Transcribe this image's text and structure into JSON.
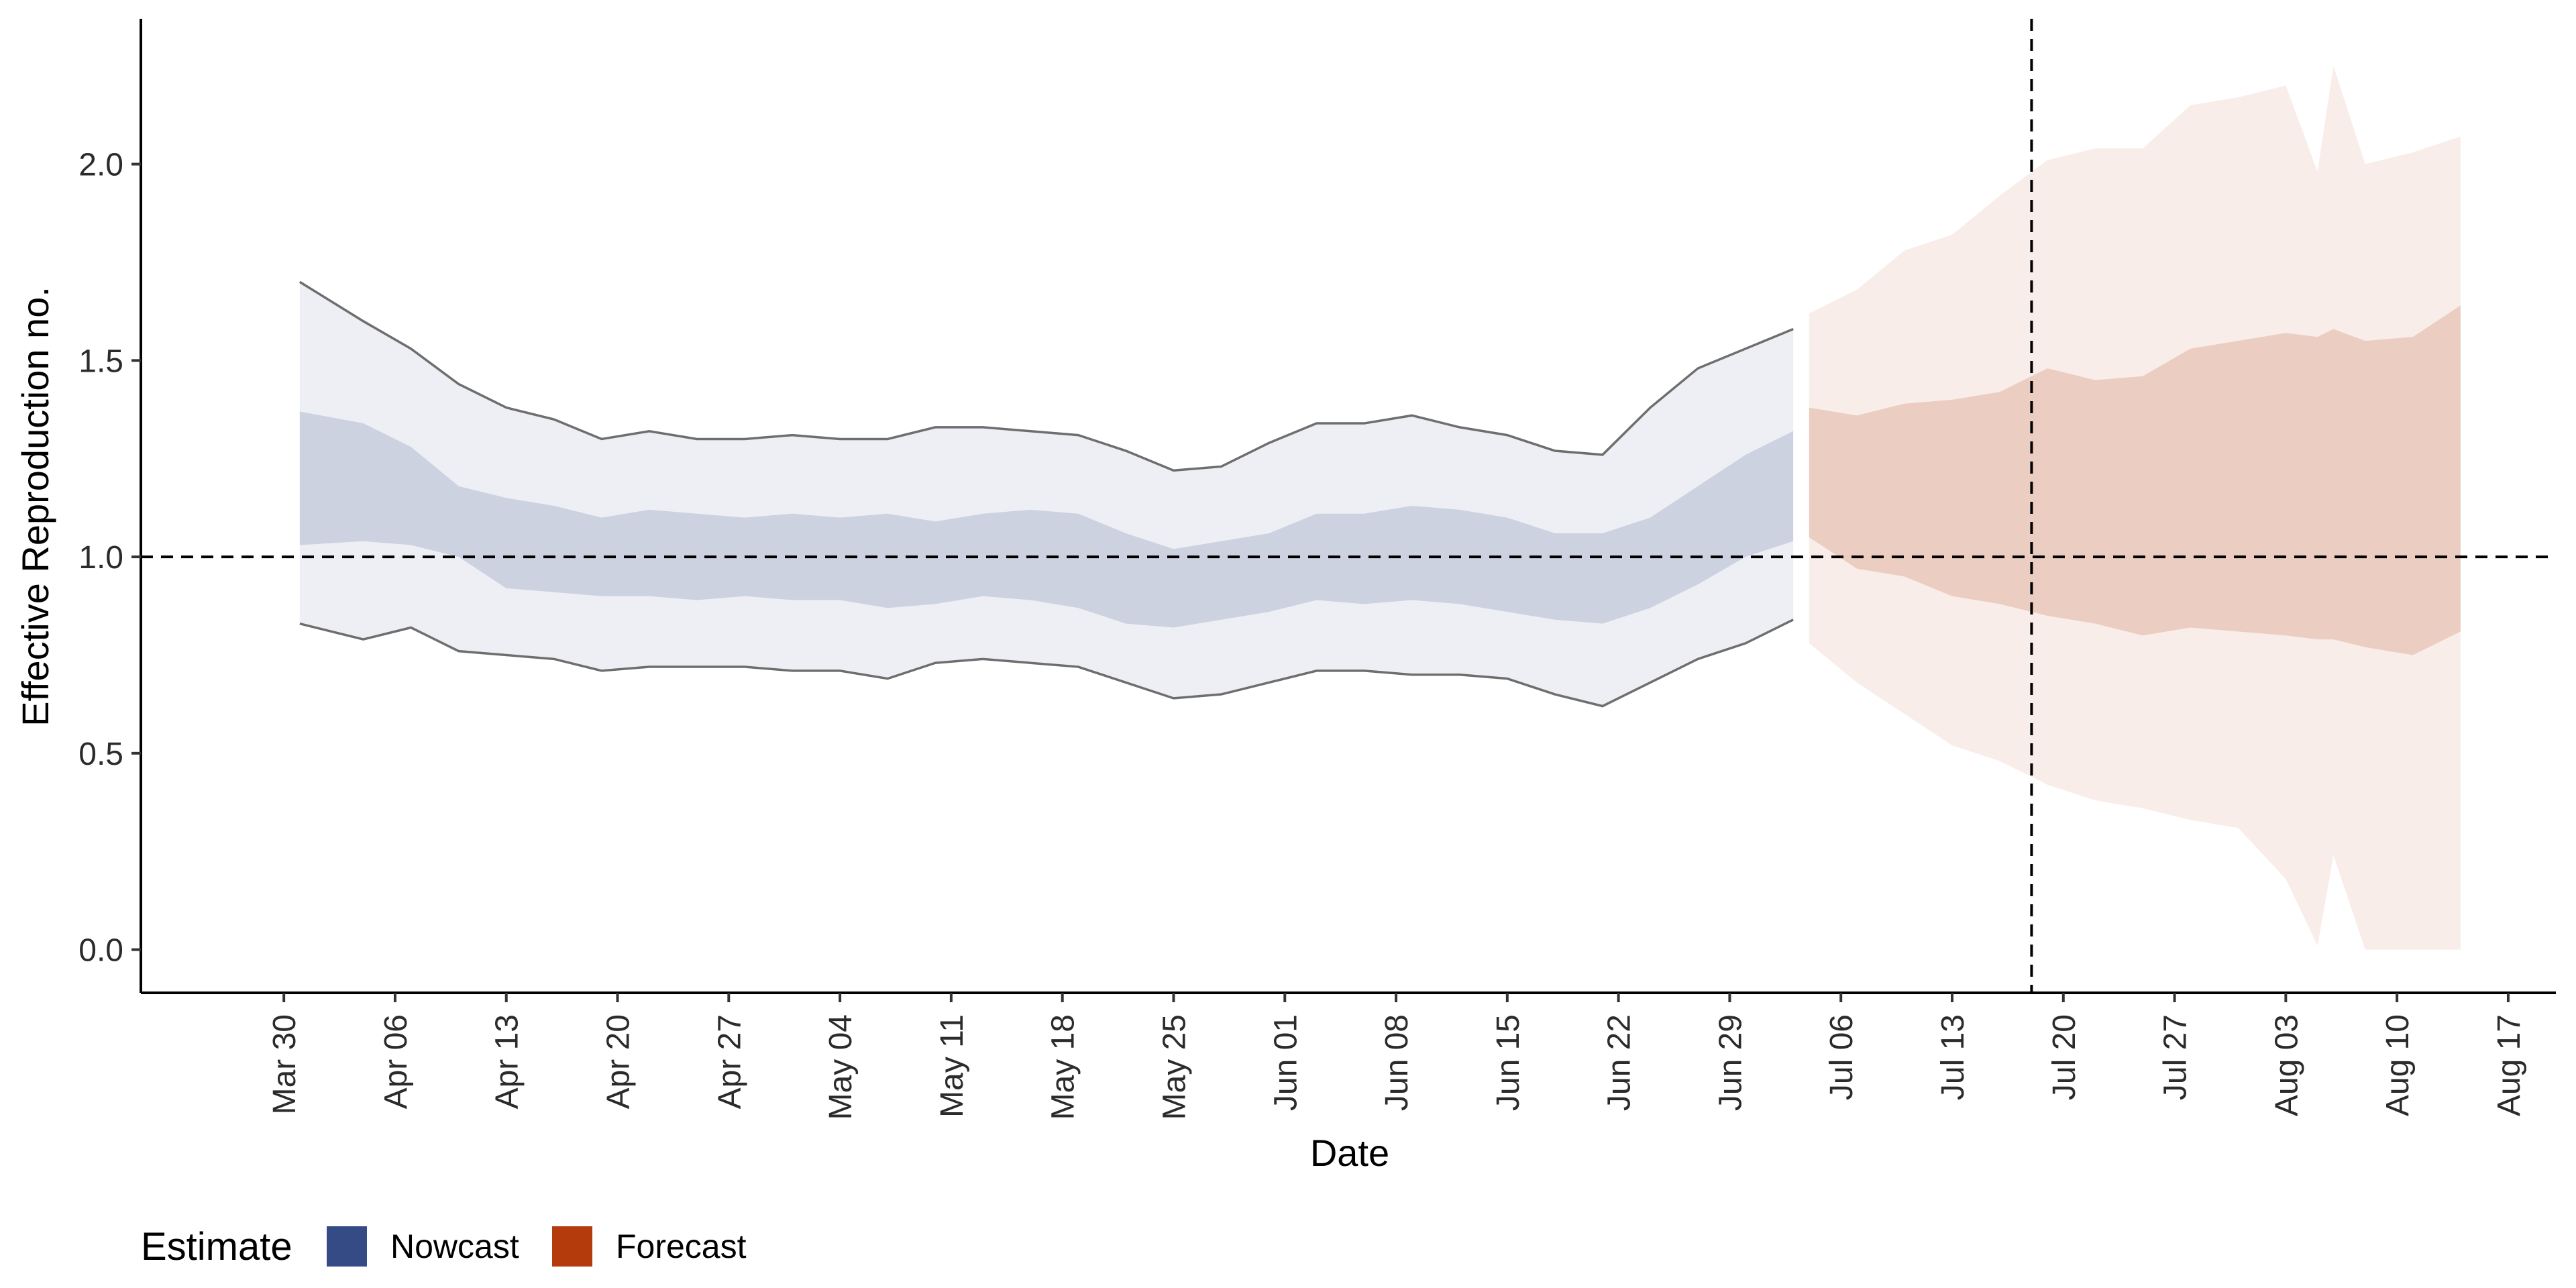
{
  "chart_data": {
    "type": "area",
    "xlabel": "Date",
    "ylabel": "Effective Reproduction no.",
    "x_ticks": [
      "Mar 30",
      "Apr 06",
      "Apr 13",
      "Apr 20",
      "Apr 27",
      "May 04",
      "May 11",
      "May 18",
      "May 25",
      "Jun 01",
      "Jun 08",
      "Jun 15",
      "Jun 22",
      "Jun 29",
      "Jul 06",
      "Jul 13",
      "Jul 20",
      "Jul 27",
      "Aug 03",
      "Aug 10",
      "Aug 17"
    ],
    "y_ticks": [
      "0.0",
      "0.5",
      "1.0",
      "1.5",
      "2.0"
    ],
    "ylim": [
      -0.11,
      2.37
    ],
    "xlim": [
      "2020-03-21",
      "2020-08-20"
    ],
    "reference_lines": {
      "horizontal_y": 1.0,
      "vertical_date": "2020-07-18"
    },
    "grid": false,
    "legend": {
      "title": "Estimate",
      "position": "bottom-left",
      "items": [
        {
          "label": "Nowcast",
          "color": "#354B86"
        },
        {
          "label": "Forecast",
          "color": "#B33B0C"
        }
      ]
    },
    "series": [
      {
        "name": "Nowcast",
        "color": "#354B86",
        "x": [
          "2020-03-31",
          "2020-04-04",
          "2020-04-07",
          "2020-04-10",
          "2020-04-13",
          "2020-04-16",
          "2020-04-19",
          "2020-04-22",
          "2020-04-25",
          "2020-04-28",
          "2020-05-01",
          "2020-05-04",
          "2020-05-07",
          "2020-05-10",
          "2020-05-13",
          "2020-05-16",
          "2020-05-19",
          "2020-05-22",
          "2020-05-25",
          "2020-05-28",
          "2020-05-31",
          "2020-06-03",
          "2020-06-06",
          "2020-06-09",
          "2020-06-12",
          "2020-06-15",
          "2020-06-18",
          "2020-06-21",
          "2020-06-24",
          "2020-06-27",
          "2020-06-30",
          "2020-07-03"
        ],
        "outer_upper": [
          1.7,
          1.6,
          1.53,
          1.44,
          1.38,
          1.35,
          1.3,
          1.32,
          1.3,
          1.3,
          1.31,
          1.3,
          1.3,
          1.33,
          1.33,
          1.32,
          1.31,
          1.27,
          1.22,
          1.23,
          1.29,
          1.34,
          1.34,
          1.36,
          1.33,
          1.31,
          1.27,
          1.26,
          1.38,
          1.48,
          1.53,
          1.58
        ],
        "inner_upper": [
          1.37,
          1.34,
          1.28,
          1.18,
          1.15,
          1.13,
          1.1,
          1.12,
          1.11,
          1.1,
          1.11,
          1.1,
          1.11,
          1.09,
          1.11,
          1.12,
          1.11,
          1.06,
          1.02,
          1.04,
          1.06,
          1.11,
          1.11,
          1.13,
          1.12,
          1.1,
          1.06,
          1.06,
          1.1,
          1.18,
          1.26,
          1.32
        ],
        "inner_lower": [
          1.03,
          1.04,
          1.03,
          1.0,
          0.92,
          0.91,
          0.9,
          0.9,
          0.89,
          0.9,
          0.89,
          0.89,
          0.87,
          0.88,
          0.9,
          0.89,
          0.87,
          0.83,
          0.82,
          0.84,
          0.86,
          0.89,
          0.88,
          0.89,
          0.88,
          0.86,
          0.84,
          0.83,
          0.87,
          0.93,
          1.0,
          1.04
        ],
        "outer_lower": [
          0.83,
          0.79,
          0.82,
          0.76,
          0.75,
          0.74,
          0.71,
          0.72,
          0.72,
          0.72,
          0.71,
          0.71,
          0.69,
          0.73,
          0.74,
          0.73,
          0.72,
          0.68,
          0.64,
          0.65,
          0.68,
          0.71,
          0.71,
          0.7,
          0.7,
          0.69,
          0.65,
          0.62,
          0.68,
          0.74,
          0.78,
          0.84
        ]
      },
      {
        "name": "Forecast",
        "color": "#B33B0C",
        "x": [
          "2020-07-04",
          "2020-07-07",
          "2020-07-10",
          "2020-07-13",
          "2020-07-16",
          "2020-07-19",
          "2020-07-22",
          "2020-07-25",
          "2020-07-28",
          "2020-07-31",
          "2020-08-03",
          "2020-08-05",
          "2020-08-06",
          "2020-08-08",
          "2020-08-11",
          "2020-08-14"
        ],
        "outer_upper": [
          1.62,
          1.68,
          1.78,
          1.82,
          1.92,
          2.01,
          2.04,
          2.04,
          2.15,
          2.17,
          2.2,
          1.98,
          2.25,
          2.0,
          2.03,
          2.07
        ],
        "inner_upper": [
          1.38,
          1.36,
          1.39,
          1.4,
          1.42,
          1.48,
          1.45,
          1.46,
          1.53,
          1.55,
          1.57,
          1.56,
          1.58,
          1.55,
          1.56,
          1.64
        ],
        "inner_lower": [
          1.05,
          0.97,
          0.95,
          0.9,
          0.88,
          0.85,
          0.83,
          0.8,
          0.82,
          0.81,
          0.8,
          0.79,
          0.79,
          0.77,
          0.75,
          0.81
        ],
        "outer_lower": [
          0.78,
          0.68,
          0.6,
          0.52,
          0.48,
          0.42,
          0.38,
          0.36,
          0.33,
          0.31,
          0.18,
          0.01,
          0.24,
          0.0,
          0.0,
          0.0
        ]
      }
    ]
  }
}
